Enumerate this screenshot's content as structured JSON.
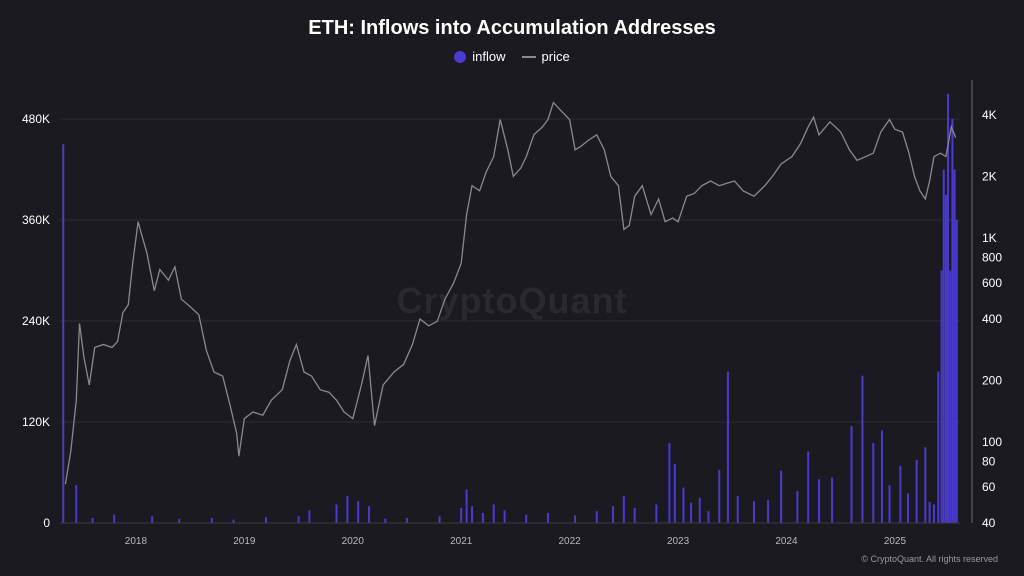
{
  "chart_data": {
    "type": "bar+line",
    "title": "ETH: Inflows into Accumulation Addresses",
    "legend": [
      "inflow",
      "price"
    ],
    "legend_position": "top-center",
    "x_labels": [
      "2018",
      "2019",
      "2020",
      "2021",
      "2022",
      "2023",
      "2024",
      "2025"
    ],
    "x_range": [
      2017.3,
      2025.6
    ],
    "y_left_ticks": [
      "0",
      "120K",
      "240K",
      "360K",
      "480K"
    ],
    "y_left_range": [
      0,
      480000
    ],
    "y_right_ticks": [
      "40",
      "60",
      "80",
      "100",
      "200",
      "400",
      "600",
      "800",
      "1K",
      "2K",
      "4K"
    ],
    "y_right_range": [
      40,
      4800
    ],
    "y_right_scale": "log",
    "grid": true,
    "series": [
      {
        "name": "price",
        "kind": "line",
        "color": "#8a8990",
        "points": [
          [
            2017.35,
            62
          ],
          [
            2017.4,
            90
          ],
          [
            2017.45,
            160
          ],
          [
            2017.48,
            380
          ],
          [
            2017.52,
            260
          ],
          [
            2017.57,
            190
          ],
          [
            2017.62,
            290
          ],
          [
            2017.7,
            300
          ],
          [
            2017.78,
            290
          ],
          [
            2017.83,
            310
          ],
          [
            2017.88,
            430
          ],
          [
            2017.93,
            470
          ],
          [
            2017.97,
            750
          ],
          [
            2018.02,
            1200
          ],
          [
            2018.05,
            1050
          ],
          [
            2018.1,
            850
          ],
          [
            2018.17,
            550
          ],
          [
            2018.22,
            700
          ],
          [
            2018.3,
            620
          ],
          [
            2018.36,
            720
          ],
          [
            2018.42,
            500
          ],
          [
            2018.5,
            460
          ],
          [
            2018.58,
            420
          ],
          [
            2018.65,
            280
          ],
          [
            2018.72,
            220
          ],
          [
            2018.8,
            210
          ],
          [
            2018.87,
            150
          ],
          [
            2018.93,
            110
          ],
          [
            2018.95,
            85
          ],
          [
            2019.0,
            130
          ],
          [
            2019.08,
            140
          ],
          [
            2019.17,
            135
          ],
          [
            2019.25,
            160
          ],
          [
            2019.35,
            180
          ],
          [
            2019.42,
            250
          ],
          [
            2019.48,
            300
          ],
          [
            2019.55,
            220
          ],
          [
            2019.62,
            210
          ],
          [
            2019.7,
            180
          ],
          [
            2019.78,
            175
          ],
          [
            2019.85,
            160
          ],
          [
            2019.92,
            140
          ],
          [
            2020.0,
            130
          ],
          [
            2020.08,
            190
          ],
          [
            2020.14,
            265
          ],
          [
            2020.2,
            120
          ],
          [
            2020.28,
            190
          ],
          [
            2020.38,
            220
          ],
          [
            2020.47,
            240
          ],
          [
            2020.55,
            300
          ],
          [
            2020.62,
            400
          ],
          [
            2020.7,
            370
          ],
          [
            2020.78,
            390
          ],
          [
            2020.85,
            500
          ],
          [
            2020.93,
            600
          ],
          [
            2021.0,
            750
          ],
          [
            2021.05,
            1300
          ],
          [
            2021.1,
            1800
          ],
          [
            2021.17,
            1700
          ],
          [
            2021.23,
            2100
          ],
          [
            2021.3,
            2500
          ],
          [
            2021.36,
            3800
          ],
          [
            2021.43,
            2700
          ],
          [
            2021.48,
            2000
          ],
          [
            2021.55,
            2200
          ],
          [
            2021.6,
            2500
          ],
          [
            2021.67,
            3200
          ],
          [
            2021.75,
            3500
          ],
          [
            2021.8,
            3800
          ],
          [
            2021.85,
            4600
          ],
          [
            2021.92,
            4200
          ],
          [
            2022.0,
            3800
          ],
          [
            2022.05,
            2700
          ],
          [
            2022.1,
            2800
          ],
          [
            2022.17,
            3000
          ],
          [
            2022.25,
            3200
          ],
          [
            2022.32,
            2700
          ],
          [
            2022.38,
            2000
          ],
          [
            2022.45,
            1800
          ],
          [
            2022.5,
            1100
          ],
          [
            2022.55,
            1150
          ],
          [
            2022.6,
            1600
          ],
          [
            2022.67,
            1800
          ],
          [
            2022.75,
            1300
          ],
          [
            2022.82,
            1550
          ],
          [
            2022.88,
            1200
          ],
          [
            2022.95,
            1250
          ],
          [
            2023.0,
            1200
          ],
          [
            2023.08,
            1600
          ],
          [
            2023.15,
            1650
          ],
          [
            2023.22,
            1800
          ],
          [
            2023.3,
            1900
          ],
          [
            2023.38,
            1800
          ],
          [
            2023.45,
            1850
          ],
          [
            2023.52,
            1900
          ],
          [
            2023.6,
            1700
          ],
          [
            2023.7,
            1600
          ],
          [
            2023.8,
            1800
          ],
          [
            2023.87,
            2000
          ],
          [
            2023.95,
            2300
          ],
          [
            2024.05,
            2500
          ],
          [
            2024.13,
            2900
          ],
          [
            2024.2,
            3500
          ],
          [
            2024.25,
            3900
          ],
          [
            2024.3,
            3200
          ],
          [
            2024.4,
            3700
          ],
          [
            2024.45,
            3500
          ],
          [
            2024.5,
            3300
          ],
          [
            2024.58,
            2700
          ],
          [
            2024.65,
            2400
          ],
          [
            2024.73,
            2500
          ],
          [
            2024.8,
            2600
          ],
          [
            2024.87,
            3300
          ],
          [
            2024.95,
            3800
          ],
          [
            2025.0,
            3400
          ],
          [
            2025.07,
            3300
          ],
          [
            2025.13,
            2600
          ],
          [
            2025.18,
            2000
          ],
          [
            2025.23,
            1700
          ],
          [
            2025.28,
            1550
          ],
          [
            2025.32,
            1900
          ],
          [
            2025.36,
            2500
          ],
          [
            2025.42,
            2600
          ],
          [
            2025.47,
            2500
          ],
          [
            2025.52,
            3500
          ],
          [
            2025.56,
            3100
          ]
        ]
      },
      {
        "name": "inflow",
        "kind": "bar",
        "color": "#4a3bd0",
        "points": [
          [
            2017.33,
            450000
          ],
          [
            2017.45,
            45000
          ],
          [
            2017.6,
            6000
          ],
          [
            2017.8,
            10000
          ],
          [
            2018.15,
            8000
          ],
          [
            2018.4,
            5000
          ],
          [
            2018.7,
            6000
          ],
          [
            2018.9,
            4000
          ],
          [
            2019.2,
            7000
          ],
          [
            2019.5,
            8000
          ],
          [
            2019.6,
            15000
          ],
          [
            2019.85,
            22000
          ],
          [
            2019.95,
            32000
          ],
          [
            2020.05,
            26000
          ],
          [
            2020.15,
            20000
          ],
          [
            2020.3,
            5000
          ],
          [
            2020.5,
            6000
          ],
          [
            2020.8,
            8000
          ],
          [
            2021.0,
            18000
          ],
          [
            2021.05,
            40000
          ],
          [
            2021.1,
            20000
          ],
          [
            2021.2,
            12000
          ],
          [
            2021.3,
            22000
          ],
          [
            2021.4,
            15000
          ],
          [
            2021.6,
            10000
          ],
          [
            2021.8,
            12000
          ],
          [
            2022.05,
            9000
          ],
          [
            2022.25,
            14000
          ],
          [
            2022.4,
            20000
          ],
          [
            2022.5,
            32000
          ],
          [
            2022.6,
            18000
          ],
          [
            2022.8,
            22000
          ],
          [
            2022.92,
            95000
          ],
          [
            2022.97,
            70000
          ],
          [
            2023.05,
            42000
          ],
          [
            2023.12,
            24000
          ],
          [
            2023.2,
            30000
          ],
          [
            2023.28,
            14000
          ],
          [
            2023.38,
            63000
          ],
          [
            2023.46,
            180000
          ],
          [
            2023.55,
            32000
          ],
          [
            2023.7,
            26000
          ],
          [
            2023.83,
            27000
          ],
          [
            2023.95,
            62000
          ],
          [
            2024.1,
            38000
          ],
          [
            2024.2,
            85000
          ],
          [
            2024.3,
            52000
          ],
          [
            2024.42,
            54000
          ],
          [
            2024.6,
            115000
          ],
          [
            2024.7,
            175000
          ],
          [
            2024.8,
            95000
          ],
          [
            2024.88,
            110000
          ],
          [
            2024.95,
            45000
          ],
          [
            2025.05,
            68000
          ],
          [
            2025.12,
            35000
          ],
          [
            2025.2,
            75000
          ],
          [
            2025.28,
            90000
          ],
          [
            2025.32,
            25000
          ],
          [
            2025.36,
            22000
          ],
          [
            2025.4,
            180000
          ],
          [
            2025.43,
            300000
          ],
          [
            2025.45,
            420000
          ],
          [
            2025.47,
            390000
          ],
          [
            2025.49,
            510000
          ],
          [
            2025.51,
            300000
          ],
          [
            2025.53,
            480000
          ],
          [
            2025.55,
            420000
          ],
          [
            2025.57,
            360000
          ]
        ]
      }
    ]
  },
  "watermark": "CryptoQuant",
  "copyright": "© CryptoQuant. All rights reserved"
}
